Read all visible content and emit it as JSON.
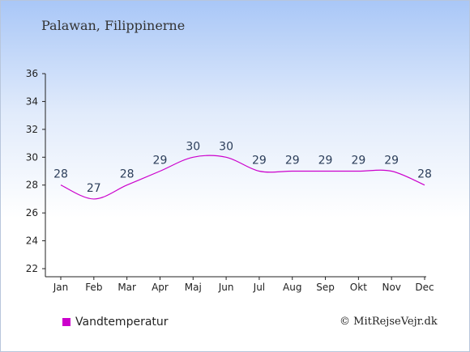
{
  "title": "Palawan, Filippinerne",
  "legend": {
    "label": "Vandtemperatur",
    "color": "#cc00cc"
  },
  "credit": "© MitRejseVejr.dk",
  "chart_data": {
    "type": "line",
    "categories": [
      "Jan",
      "Feb",
      "Mar",
      "Apr",
      "Maj",
      "Jun",
      "Jul",
      "Aug",
      "Sep",
      "Okt",
      "Nov",
      "Dec"
    ],
    "series": [
      {
        "name": "Vandtemperatur",
        "values": [
          28,
          27,
          28,
          29,
          30,
          30,
          29,
          29,
          29,
          29,
          29,
          28
        ],
        "color": "#cc00cc"
      }
    ],
    "data_labels": [
      "28",
      "27",
      "28",
      "29",
      "30",
      "30",
      "29",
      "29",
      "29",
      "29",
      "29",
      "28"
    ],
    "ylim": [
      22,
      36
    ],
    "yticks": [
      22,
      24,
      26,
      28,
      30,
      32,
      34,
      36
    ],
    "grid": false,
    "legend_position": "bottom-left"
  }
}
